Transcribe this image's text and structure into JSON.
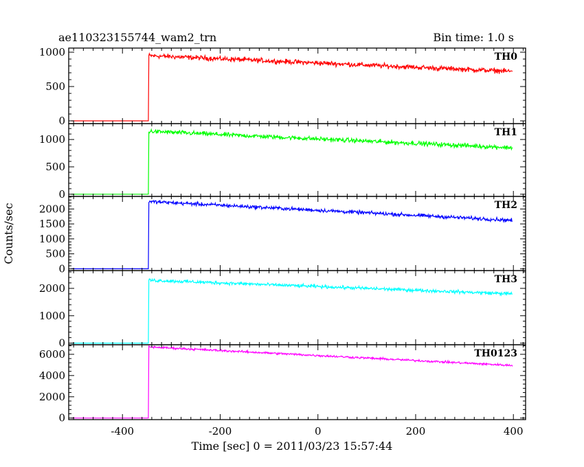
{
  "header": {
    "title": "ae110323155744_wam2_trn",
    "bin_time": "Bin time: 1.0 s"
  },
  "chart_data": {
    "type": "line",
    "xlabel": "Time [sec] 0 = 2011/03/23 15:57:44",
    "ylabel": "Counts/sec",
    "xlim": [
      -510,
      425
    ],
    "x_ticks": [
      -400,
      -200,
      0,
      200,
      400
    ],
    "onset_time": -347,
    "panels": [
      {
        "name": "TH0",
        "color": "#ff0000",
        "ylim": [
          -40,
          1060
        ],
        "y_ticks": [
          0,
          500,
          1000
        ],
        "baseline": 0,
        "start_level": 950,
        "end_level": 720,
        "noise": 35
      },
      {
        "name": "TH1",
        "color": "#00ff00",
        "ylim": [
          -40,
          1290
        ],
        "y_ticks": [
          0,
          500,
          1000
        ],
        "baseline": 0,
        "start_level": 1150,
        "end_level": 850,
        "noise": 40
      },
      {
        "name": "TH2",
        "color": "#0000ff",
        "ylim": [
          -60,
          2420
        ],
        "y_ticks": [
          0,
          500,
          1000,
          1500,
          2000
        ],
        "baseline": 0,
        "start_level": 2250,
        "end_level": 1620,
        "noise": 60
      },
      {
        "name": "TH3",
        "color": "#00ffff",
        "ylim": [
          -60,
          2650
        ],
        "y_ticks": [
          0,
          1000,
          2000
        ],
        "baseline": 0,
        "start_level": 2300,
        "end_level": 1800,
        "noise": 60
      },
      {
        "name": "TH0123",
        "color": "#ff00ff",
        "ylim": [
          -150,
          6900
        ],
        "y_ticks": [
          0,
          2000,
          4000,
          6000
        ],
        "baseline": 0,
        "start_level": 6700,
        "end_level": 4950,
        "noise": 100
      }
    ]
  }
}
